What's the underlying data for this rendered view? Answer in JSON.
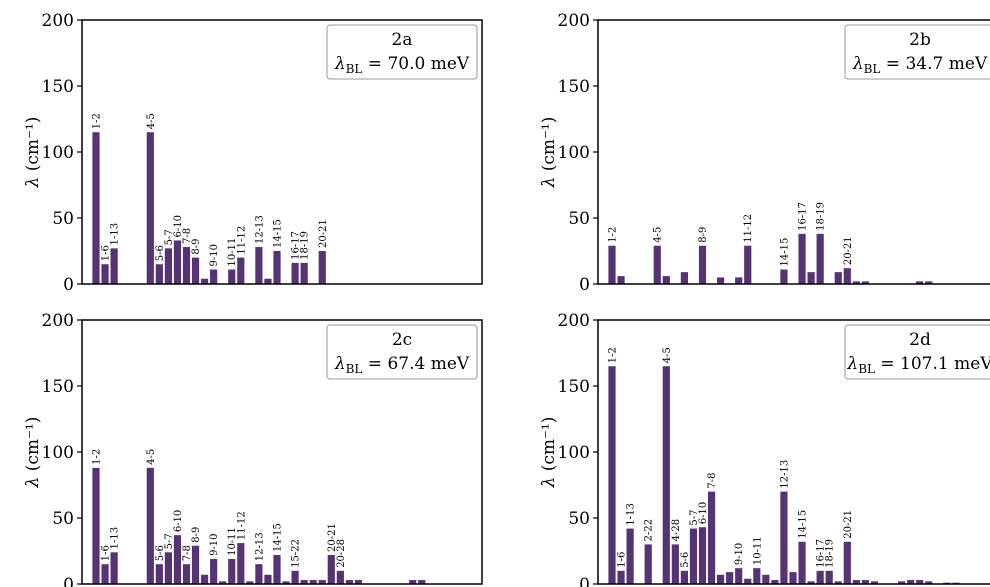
{
  "chart_data": [
    {
      "type": "bar",
      "panel": "2a",
      "legend": {
        "title": "2a",
        "value_label": "70.0 meV"
      },
      "ylabel": "(cm⁻¹)",
      "ylim": [
        0,
        200
      ],
      "yticks": [
        0,
        50,
        100,
        150,
        200
      ],
      "color": "#563474",
      "bars": [
        {
          "i": 0,
          "value": 115,
          "label": "1-2"
        },
        {
          "i": 1,
          "value": 15,
          "label": "1-6"
        },
        {
          "i": 2,
          "value": 27,
          "label": "1-13"
        },
        {
          "i": 6,
          "value": 115,
          "label": "4-5"
        },
        {
          "i": 7,
          "value": 15,
          "label": "5-6"
        },
        {
          "i": 8,
          "value": 27,
          "label": "5-7"
        },
        {
          "i": 9,
          "value": 33,
          "label": "6-10"
        },
        {
          "i": 10,
          "value": 28,
          "label": "7-8"
        },
        {
          "i": 11,
          "value": 20,
          "label": "8-9"
        },
        {
          "i": 12,
          "value": 4,
          "label": ""
        },
        {
          "i": 13,
          "value": 11,
          "label": "9-10"
        },
        {
          "i": 15,
          "value": 11,
          "label": "10-11"
        },
        {
          "i": 16,
          "value": 20,
          "label": "11-12"
        },
        {
          "i": 18,
          "value": 28,
          "label": "12-13"
        },
        {
          "i": 19,
          "value": 4,
          "label": ""
        },
        {
          "i": 20,
          "value": 25,
          "label": "14-15"
        },
        {
          "i": 22,
          "value": 16,
          "label": "16-17"
        },
        {
          "i": 23,
          "value": 16,
          "label": "18-19"
        },
        {
          "i": 25,
          "value": 25,
          "label": "20-21"
        }
      ]
    },
    {
      "type": "bar",
      "panel": "2b",
      "legend": {
        "title": "2b",
        "value_label": "34.7 meV"
      },
      "ylabel": "(cm⁻¹)",
      "ylim": [
        0,
        200
      ],
      "yticks": [
        0,
        50,
        100,
        150,
        200
      ],
      "color": "#563474",
      "bars": [
        {
          "i": 0,
          "value": 29,
          "label": "1-2"
        },
        {
          "i": 1,
          "value": 6,
          "label": ""
        },
        {
          "i": 5,
          "value": 29,
          "label": "4-5"
        },
        {
          "i": 6,
          "value": 6,
          "label": ""
        },
        {
          "i": 8,
          "value": 9,
          "label": ""
        },
        {
          "i": 10,
          "value": 29,
          "label": "8-9"
        },
        {
          "i": 12,
          "value": 5,
          "label": ""
        },
        {
          "i": 14,
          "value": 5,
          "label": ""
        },
        {
          "i": 15,
          "value": 29,
          "label": "11-12"
        },
        {
          "i": 19,
          "value": 11,
          "label": "14-15"
        },
        {
          "i": 21,
          "value": 38,
          "label": "16-17"
        },
        {
          "i": 22,
          "value": 9,
          "label": ""
        },
        {
          "i": 23,
          "value": 38,
          "label": "18-19"
        },
        {
          "i": 25,
          "value": 9,
          "label": ""
        },
        {
          "i": 26,
          "value": 12,
          "label": "20-21"
        },
        {
          "i": 27,
          "value": 2,
          "label": ""
        },
        {
          "i": 28,
          "value": 2,
          "label": ""
        },
        {
          "i": 34,
          "value": 2,
          "label": ""
        },
        {
          "i": 35,
          "value": 2,
          "label": ""
        }
      ]
    },
    {
      "type": "bar",
      "panel": "2c",
      "legend": {
        "title": "2c",
        "value_label": "67.4 meV"
      },
      "ylabel": "(cm⁻¹)",
      "ylim": [
        0,
        200
      ],
      "yticks": [
        0,
        50,
        100,
        150,
        200
      ],
      "color": "#563474",
      "bars": [
        {
          "i": 0,
          "value": 88,
          "label": "1-2"
        },
        {
          "i": 1,
          "value": 15,
          "label": "1-6"
        },
        {
          "i": 2,
          "value": 24,
          "label": "1-13"
        },
        {
          "i": 6,
          "value": 88,
          "label": "4-5"
        },
        {
          "i": 7,
          "value": 15,
          "label": "5-6"
        },
        {
          "i": 8,
          "value": 24,
          "label": "5-7"
        },
        {
          "i": 9,
          "value": 37,
          "label": "6-10"
        },
        {
          "i": 10,
          "value": 15,
          "label": "7-8"
        },
        {
          "i": 11,
          "value": 29,
          "label": "8-9"
        },
        {
          "i": 12,
          "value": 7,
          "label": ""
        },
        {
          "i": 13,
          "value": 19,
          "label": "9-10"
        },
        {
          "i": 14,
          "value": 2,
          "label": ""
        },
        {
          "i": 15,
          "value": 19,
          "label": "10-11"
        },
        {
          "i": 16,
          "value": 31,
          "label": "11-12"
        },
        {
          "i": 17,
          "value": 2,
          "label": ""
        },
        {
          "i": 18,
          "value": 15,
          "label": "12-13"
        },
        {
          "i": 19,
          "value": 7,
          "label": ""
        },
        {
          "i": 20,
          "value": 22,
          "label": "14-15"
        },
        {
          "i": 21,
          "value": 2,
          "label": ""
        },
        {
          "i": 22,
          "value": 10,
          "label": "15-22"
        },
        {
          "i": 23,
          "value": 3,
          "label": ""
        },
        {
          "i": 24,
          "value": 3,
          "label": ""
        },
        {
          "i": 25,
          "value": 3,
          "label": ""
        },
        {
          "i": 26,
          "value": 22,
          "label": "20-21"
        },
        {
          "i": 27,
          "value": 10,
          "label": "20-28"
        },
        {
          "i": 28,
          "value": 3,
          "label": ""
        },
        {
          "i": 29,
          "value": 3,
          "label": ""
        },
        {
          "i": 35,
          "value": 3,
          "label": ""
        },
        {
          "i": 36,
          "value": 3,
          "label": ""
        }
      ]
    },
    {
      "type": "bar",
      "panel": "2d",
      "legend": {
        "title": "2d",
        "value_label": "107.1 meV"
      },
      "ylabel": "(cm⁻¹)",
      "ylim": [
        0,
        200
      ],
      "yticks": [
        0,
        50,
        100,
        150,
        200
      ],
      "color": "#563474",
      "bars": [
        {
          "i": 0,
          "value": 165,
          "label": "1-2"
        },
        {
          "i": 1,
          "value": 10,
          "label": "1-6"
        },
        {
          "i": 2,
          "value": 42,
          "label": "1-13"
        },
        {
          "i": 4,
          "value": 30,
          "label": "2-22"
        },
        {
          "i": 6,
          "value": 165,
          "label": "4-5"
        },
        {
          "i": 7,
          "value": 30,
          "label": "4-28"
        },
        {
          "i": 8,
          "value": 10,
          "label": "5-6"
        },
        {
          "i": 9,
          "value": 42,
          "label": "5-7"
        },
        {
          "i": 10,
          "value": 43,
          "label": "6-10"
        },
        {
          "i": 11,
          "value": 70,
          "label": "7-8"
        },
        {
          "i": 12,
          "value": 7,
          "label": ""
        },
        {
          "i": 13,
          "value": 9,
          "label": ""
        },
        {
          "i": 14,
          "value": 12,
          "label": "9-10"
        },
        {
          "i": 15,
          "value": 4,
          "label": ""
        },
        {
          "i": 16,
          "value": 12,
          "label": "10-11"
        },
        {
          "i": 17,
          "value": 7,
          "label": ""
        },
        {
          "i": 18,
          "value": 3,
          "label": ""
        },
        {
          "i": 19,
          "value": 70,
          "label": "12-13"
        },
        {
          "i": 20,
          "value": 9,
          "label": ""
        },
        {
          "i": 21,
          "value": 32,
          "label": "14-15"
        },
        {
          "i": 22,
          "value": 2,
          "label": ""
        },
        {
          "i": 23,
          "value": 10,
          "label": "16-17"
        },
        {
          "i": 24,
          "value": 10,
          "label": "18-19"
        },
        {
          "i": 25,
          "value": 2,
          "label": ""
        },
        {
          "i": 26,
          "value": 32,
          "label": "20-21"
        },
        {
          "i": 27,
          "value": 3,
          "label": ""
        },
        {
          "i": 28,
          "value": 3,
          "label": ""
        },
        {
          "i": 29,
          "value": 2,
          "label": ""
        },
        {
          "i": 32,
          "value": 2,
          "label": ""
        },
        {
          "i": 33,
          "value": 3,
          "label": ""
        },
        {
          "i": 34,
          "value": 3,
          "label": ""
        },
        {
          "i": 35,
          "value": 2,
          "label": ""
        },
        {
          "i": 37,
          "value": 1,
          "label": ""
        },
        {
          "i": 38,
          "value": 1,
          "label": ""
        }
      ]
    }
  ]
}
